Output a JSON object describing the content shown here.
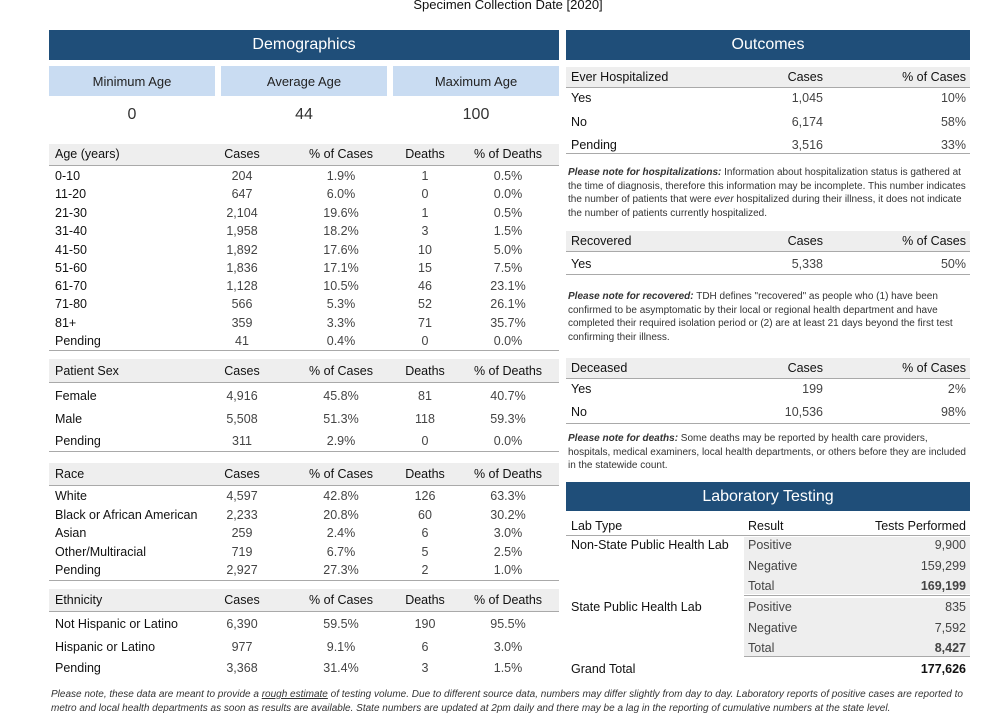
{
  "page_title": "Specimen Collection Date [2020]",
  "demographics": {
    "title": "Demographics",
    "min_age": {
      "label": "Minimum Age",
      "value": "0"
    },
    "avg_age": {
      "label": "Average Age",
      "value": "44"
    },
    "max_age": {
      "label": "Maximum Age",
      "value": "100"
    },
    "headers": {
      "cases": "Cases",
      "pct_cases": "% of Cases",
      "deaths": "Deaths",
      "pct_deaths": "% of Deaths"
    },
    "age": {
      "title": "Age (years)",
      "rows": [
        {
          "label": "0-10",
          "cases": "204",
          "pct_cases": "1.9%",
          "deaths": "1",
          "pct_deaths": "0.5%"
        },
        {
          "label": "11-20",
          "cases": "647",
          "pct_cases": "6.0%",
          "deaths": "0",
          "pct_deaths": "0.0%"
        },
        {
          "label": "21-30",
          "cases": "2,104",
          "pct_cases": "19.6%",
          "deaths": "1",
          "pct_deaths": "0.5%"
        },
        {
          "label": "31-40",
          "cases": "1,958",
          "pct_cases": "18.2%",
          "deaths": "3",
          "pct_deaths": "1.5%"
        },
        {
          "label": "41-50",
          "cases": "1,892",
          "pct_cases": "17.6%",
          "deaths": "10",
          "pct_deaths": "5.0%"
        },
        {
          "label": "51-60",
          "cases": "1,836",
          "pct_cases": "17.1%",
          "deaths": "15",
          "pct_deaths": "7.5%"
        },
        {
          "label": "61-70",
          "cases": "1,128",
          "pct_cases": "10.5%",
          "deaths": "46",
          "pct_deaths": "23.1%"
        },
        {
          "label": "71-80",
          "cases": "566",
          "pct_cases": "5.3%",
          "deaths": "52",
          "pct_deaths": "26.1%"
        },
        {
          "label": "81+",
          "cases": "359",
          "pct_cases": "3.3%",
          "deaths": "71",
          "pct_deaths": "35.7%"
        },
        {
          "label": "Pending",
          "cases": "41",
          "pct_cases": "0.4%",
          "deaths": "0",
          "pct_deaths": "0.0%"
        }
      ]
    },
    "sex": {
      "title": "Patient Sex",
      "rows": [
        {
          "label": "Female",
          "cases": "4,916",
          "pct_cases": "45.8%",
          "deaths": "81",
          "pct_deaths": "40.7%"
        },
        {
          "label": "Male",
          "cases": "5,508",
          "pct_cases": "51.3%",
          "deaths": "118",
          "pct_deaths": "59.3%"
        },
        {
          "label": "Pending",
          "cases": "311",
          "pct_cases": "2.9%",
          "deaths": "0",
          "pct_deaths": "0.0%"
        }
      ]
    },
    "race": {
      "title": "Race",
      "rows": [
        {
          "label": "White",
          "cases": "4,597",
          "pct_cases": "42.8%",
          "deaths": "126",
          "pct_deaths": "63.3%"
        },
        {
          "label": "Black or African American",
          "cases": "2,233",
          "pct_cases": "20.8%",
          "deaths": "60",
          "pct_deaths": "30.2%"
        },
        {
          "label": "Asian",
          "cases": "259",
          "pct_cases": "2.4%",
          "deaths": "6",
          "pct_deaths": "3.0%"
        },
        {
          "label": "Other/Multiracial",
          "cases": "719",
          "pct_cases": "6.7%",
          "deaths": "5",
          "pct_deaths": "2.5%"
        },
        {
          "label": "Pending",
          "cases": "2,927",
          "pct_cases": "27.3%",
          "deaths": "2",
          "pct_deaths": "1.0%"
        }
      ]
    },
    "ethnicity": {
      "title": "Ethnicity",
      "rows": [
        {
          "label": "Not Hispanic or Latino",
          "cases": "6,390",
          "pct_cases": "59.5%",
          "deaths": "190",
          "pct_deaths": "95.5%"
        },
        {
          "label": "Hispanic or Latino",
          "cases": "977",
          "pct_cases": "9.1%",
          "deaths": "6",
          "pct_deaths": "3.0%"
        },
        {
          "label": "Pending",
          "cases": "3,368",
          "pct_cases": "31.4%",
          "deaths": "3",
          "pct_deaths": "1.5%"
        }
      ]
    }
  },
  "outcomes": {
    "title": "Outcomes",
    "col_cases": "Cases",
    "col_pct": "% of Cases",
    "hospitalized": {
      "title": "Ever Hospitalized",
      "rows": [
        {
          "label": "Yes",
          "cases": "1,045",
          "pct": "10%"
        },
        {
          "label": "No",
          "cases": "6,174",
          "pct": "58%"
        },
        {
          "label": "Pending",
          "cases": "3,516",
          "pct": "33%"
        }
      ],
      "note_lead": "Please note for hospitalizations:",
      "note_a": " Information about hospitalization status is gathered at the time of diagnosis, therefore this information may be incomplete. This number indicates the number of patients that were ",
      "note_em": "ever",
      "note_b": " hospitalized during their illness, it does not indicate the number of patients currently hospitalized."
    },
    "recovered": {
      "title": "Recovered",
      "rows": [
        {
          "label": "Yes",
          "cases": "5,338",
          "pct": "50%"
        }
      ],
      "note_lead": "Please note for recovered:",
      "note_a": " TDH defines \"recovered\" as people who (1) have been confirmed to be asymptomatic by their local or regional health department and have completed their required isolation period or (2) are at least 21 days beyond the first test confirming their illness."
    },
    "deceased": {
      "title": "Deceased",
      "rows": [
        {
          "label": "Yes",
          "cases": "199",
          "pct": "2%"
        },
        {
          "label": "No",
          "cases": "10,536",
          "pct": "98%"
        }
      ],
      "note_lead": "Please note for deaths:",
      "note_a": " Some deaths may be reported by health care providers, hospitals, medical examiners, local health departments, or others before they are included in the statewide count."
    }
  },
  "lab": {
    "title": "Laboratory Testing",
    "col_type": "Lab Type",
    "col_result": "Result",
    "col_tests": "Tests Performed",
    "non_state": {
      "label": "Non-State Public Health Lab",
      "rows": [
        {
          "result": "Positive",
          "tests": "9,900"
        },
        {
          "result": "Negative",
          "tests": "159,299"
        },
        {
          "result": "Total",
          "tests": "169,199"
        }
      ]
    },
    "state": {
      "label": "State Public Health Lab",
      "rows": [
        {
          "result": "Positive",
          "tests": "835"
        },
        {
          "result": "Negative",
          "tests": "7,592"
        },
        {
          "result": "Total",
          "tests": "8,427"
        }
      ]
    },
    "grand_total_label": "Grand Total",
    "grand_total": "177,626"
  },
  "footer": {
    "a": "Please note, these data are meant to provide a ",
    "u": "rough estimate",
    "b": " of testing volume. Due to different source data, numbers may differ slightly from day to day.  Laboratory reports of positive cases are reported to metro and local health departments as soon as results are available. State numbers are updated at 2pm daily and there may be a lag in the reporting of cumulative numbers at the state level."
  },
  "colors": {
    "header": "#1f4e79",
    "card": "#c9dcf2",
    "shade": "#eeeeee"
  }
}
